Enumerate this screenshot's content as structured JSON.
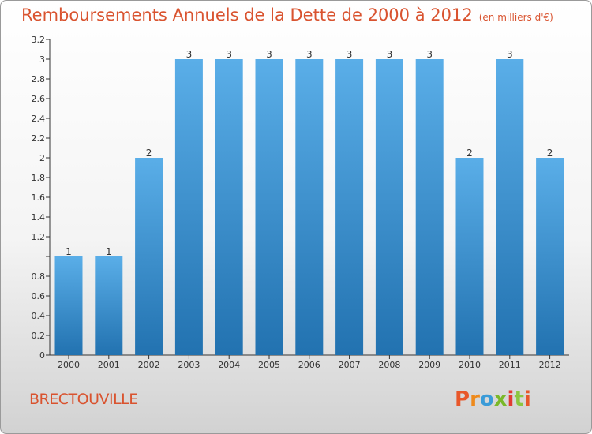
{
  "page": {
    "title_main": "Remboursements Annuels de la Dette de 2000 à 2012",
    "title_unit": "(en milliers d'€)",
    "commune": "BRECTOUVILLE",
    "logo_text": "Proxiti",
    "logo_colors": [
      "#e8572a",
      "#ee8a1c",
      "#3a9bd8",
      "#7ab829",
      "#e23a32",
      "#8cc63f",
      "#e8572a"
    ]
  },
  "chart_data": {
    "type": "bar",
    "title": "Remboursements Annuels de la Dette de 2000 à 2012",
    "unit": "(en milliers d'€)",
    "categories": [
      "2000",
      "2001",
      "2002",
      "2003",
      "2004",
      "2005",
      "2006",
      "2007",
      "2008",
      "2009",
      "2010",
      "2011",
      "2012"
    ],
    "values": [
      1,
      1,
      2,
      3,
      3,
      3,
      3,
      3,
      3,
      3,
      2,
      3,
      2
    ],
    "value_labels": [
      "1",
      "1",
      "2",
      "3",
      "3",
      "3",
      "3",
      "3",
      "3",
      "3",
      "2",
      "3",
      "2"
    ],
    "yticks": [
      0,
      0.2,
      0.4,
      0.6,
      0.8,
      1,
      1.2,
      1.4,
      1.6,
      1.8,
      2,
      2.2,
      2.4,
      2.6,
      2.8,
      3,
      3.2
    ],
    "ytick_labels": [
      "0",
      "0.2",
      "0.4",
      "0.6",
      "0.8",
      "",
      "1.2",
      "1.4",
      "1.6",
      "1.8",
      "2",
      "2.2",
      "2.4",
      "2.6",
      "2.8",
      "3",
      "3.2"
    ],
    "ylim": [
      0,
      3.2
    ],
    "grid": false,
    "colors": {
      "bar_light": "#5aaee8",
      "bar_dark": "#2272b0",
      "axis": "#333333",
      "text": "#333333",
      "accent": "#d9532f"
    }
  }
}
